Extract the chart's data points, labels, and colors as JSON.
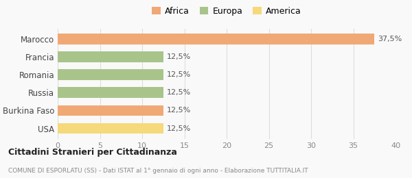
{
  "categories": [
    "Marocco",
    "Francia",
    "Romania",
    "Russia",
    "Burkina Faso",
    "USA"
  ],
  "values": [
    37.5,
    12.5,
    12.5,
    12.5,
    12.5,
    12.5
  ],
  "colors": [
    "#F0A875",
    "#A8C48A",
    "#A8C48A",
    "#A8C48A",
    "#F0A875",
    "#F5D97A"
  ],
  "legend": [
    {
      "label": "Africa",
      "color": "#F0A875"
    },
    {
      "label": "Europa",
      "color": "#A8C48A"
    },
    {
      "label": "America",
      "color": "#F5D97A"
    }
  ],
  "xlim": [
    0,
    40
  ],
  "xticks": [
    0,
    5,
    10,
    15,
    20,
    25,
    30,
    35,
    40
  ],
  "title": "Cittadini Stranieri per Cittadinanza",
  "subtitle": "COMUNE DI ESPORLATU (SS) - Dati ISTAT al 1° gennaio di ogni anno - Elaborazione TUTTITALIA.IT",
  "bar_labels": [
    "37,5%",
    "12,5%",
    "12,5%",
    "12,5%",
    "12,5%",
    "12,5%"
  ],
  "background_color": "#f9f9f9",
  "grid_color": "#dddddd"
}
